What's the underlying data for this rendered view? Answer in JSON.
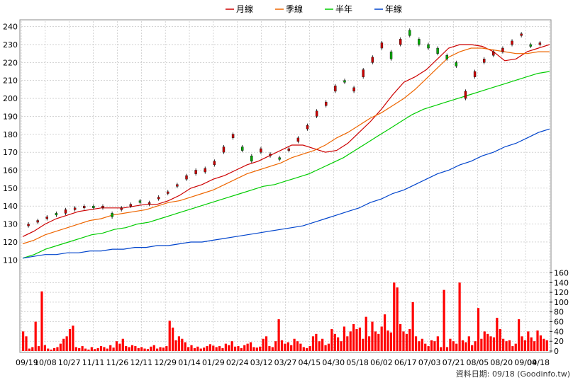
{
  "legend": [
    {
      "label": "月線",
      "color": "#cc0000"
    },
    {
      "label": "季線",
      "color": "#ee6600"
    },
    {
      "label": "半年",
      "color": "#00cc00"
    },
    {
      "label": "年線",
      "color": "#0044cc"
    }
  ],
  "footer": {
    "text": "資料日期: 09/18 (Goodinfo.tw)"
  },
  "colors": {
    "up_candle": "#cc0000",
    "down_candle": "#00aa00",
    "volume_bar": "#ff0000",
    "grid": "#bbbbbb"
  },
  "chart_data": [
    {
      "type": "line",
      "title": "",
      "x_tick_labels": [
        "09/19",
        "10/08",
        "10/27",
        "11/11",
        "11/26",
        "12/11",
        "12/29",
        "01/14",
        "01/29",
        "02/24",
        "03/12",
        "03/27",
        "04/15",
        "04/30",
        "05/18",
        "06/02",
        "06/17",
        "07/03",
        "07/21",
        "08/05",
        "08/20",
        "09/04",
        "09/18"
      ],
      "ylim": [
        105,
        243
      ],
      "y_ticks": [
        110,
        120,
        130,
        140,
        150,
        160,
        170,
        180,
        190,
        200,
        210,
        220,
        230,
        240
      ],
      "grid": true,
      "legend_placement": "top",
      "series": [
        {
          "name": "月線",
          "color": "#cc0000",
          "values": [
            123,
            126,
            130,
            133,
            135,
            137,
            138,
            139,
            139,
            139,
            140,
            141,
            141,
            143,
            146,
            150,
            152,
            155,
            157,
            160,
            163,
            165,
            168,
            171,
            174,
            174,
            172,
            170,
            171,
            175,
            181,
            187,
            194,
            202,
            209,
            212,
            216,
            222,
            228,
            230,
            230,
            229,
            226,
            221,
            222,
            226,
            228,
            230
          ]
        },
        {
          "name": "季線",
          "color": "#ee6600",
          "values": [
            119,
            121,
            124,
            126,
            128,
            130,
            132,
            133,
            135,
            136,
            137,
            138,
            140,
            142,
            143,
            145,
            147,
            149,
            152,
            155,
            158,
            160,
            162,
            164,
            167,
            169,
            171,
            174,
            178,
            181,
            185,
            189,
            192,
            196,
            200,
            205,
            211,
            217,
            223,
            226,
            228,
            228,
            227,
            226,
            225,
            225,
            226,
            226
          ]
        },
        {
          "name": "半年",
          "color": "#00cc00",
          "values": [
            111,
            113,
            116,
            118,
            120,
            122,
            124,
            125,
            127,
            128,
            130,
            131,
            133,
            135,
            137,
            139,
            141,
            143,
            145,
            147,
            149,
            151,
            152,
            154,
            156,
            158,
            161,
            164,
            167,
            171,
            175,
            179,
            183,
            187,
            191,
            194,
            196,
            198,
            200,
            202,
            204,
            206,
            208,
            210,
            212,
            214,
            215
          ]
        },
        {
          "name": "年線",
          "color": "#0044cc",
          "values": [
            111,
            112,
            113,
            113,
            114,
            114,
            115,
            115,
            116,
            116,
            117,
            117,
            118,
            118,
            119,
            120,
            120,
            121,
            122,
            123,
            124,
            125,
            126,
            127,
            128,
            129,
            131,
            133,
            135,
            137,
            139,
            142,
            144,
            147,
            149,
            152,
            155,
            158,
            160,
            163,
            165,
            168,
            170,
            173,
            175,
            178,
            181,
            183
          ]
        }
      ]
    },
    {
      "type": "candlestick",
      "description_note": "",
      "candles": [
        {
          "i": 1,
          "o": 129,
          "c": 130
        },
        {
          "i": 3,
          "o": 131,
          "c": 132
        },
        {
          "i": 5,
          "o": 133,
          "c": 134
        },
        {
          "i": 7,
          "o": 136,
          "c": 135
        },
        {
          "i": 9,
          "o": 136,
          "c": 138
        },
        {
          "i": 11,
          "o": 138,
          "c": 139
        },
        {
          "i": 13,
          "o": 139,
          "c": 140
        },
        {
          "i": 15,
          "o": 140,
          "c": 139
        },
        {
          "i": 17,
          "o": 139,
          "c": 140
        },
        {
          "i": 19,
          "o": 136,
          "c": 134
        },
        {
          "i": 21,
          "o": 138,
          "c": 139
        },
        {
          "i": 23,
          "o": 140,
          "c": 141
        },
        {
          "i": 25,
          "o": 143,
          "c": 142
        },
        {
          "i": 27,
          "o": 141,
          "c": 142
        },
        {
          "i": 29,
          "o": 144,
          "c": 145
        },
        {
          "i": 31,
          "o": 147,
          "c": 148
        },
        {
          "i": 33,
          "o": 151,
          "c": 152
        },
        {
          "i": 35,
          "o": 155,
          "c": 157
        },
        {
          "i": 37,
          "o": 158,
          "c": 160
        },
        {
          "i": 39,
          "o": 159,
          "c": 161
        },
        {
          "i": 41,
          "o": 163,
          "c": 165
        },
        {
          "i": 43,
          "o": 170,
          "c": 173
        },
        {
          "i": 45,
          "o": 178,
          "c": 180
        },
        {
          "i": 47,
          "o": 173,
          "c": 171
        },
        {
          "i": 49,
          "o": 168,
          "c": 165
        },
        {
          "i": 51,
          "o": 170,
          "c": 172
        },
        {
          "i": 53,
          "o": 168,
          "c": 169
        },
        {
          "i": 55,
          "o": 167,
          "c": 166
        },
        {
          "i": 57,
          "o": 171,
          "c": 172
        },
        {
          "i": 59,
          "o": 176,
          "c": 178
        },
        {
          "i": 61,
          "o": 183,
          "c": 185
        },
        {
          "i": 63,
          "o": 190,
          "c": 193
        },
        {
          "i": 65,
          "o": 196,
          "c": 198
        },
        {
          "i": 67,
          "o": 204,
          "c": 207
        },
        {
          "i": 69,
          "o": 210,
          "c": 209
        },
        {
          "i": 71,
          "o": 204,
          "c": 206
        },
        {
          "i": 73,
          "o": 212,
          "c": 216
        },
        {
          "i": 75,
          "o": 220,
          "c": 223
        },
        {
          "i": 77,
          "o": 228,
          "c": 231
        },
        {
          "i": 79,
          "o": 226,
          "c": 222
        },
        {
          "i": 81,
          "o": 230,
          "c": 233
        },
        {
          "i": 83,
          "o": 238,
          "c": 235
        },
        {
          "i": 85,
          "o": 233,
          "c": 230
        },
        {
          "i": 87,
          "o": 230,
          "c": 228
        },
        {
          "i": 89,
          "o": 228,
          "c": 225
        },
        {
          "i": 91,
          "o": 224,
          "c": 222
        },
        {
          "i": 93,
          "o": 220,
          "c": 218
        },
        {
          "i": 95,
          "o": 200,
          "c": 204
        },
        {
          "i": 97,
          "o": 212,
          "c": 215
        },
        {
          "i": 99,
          "o": 220,
          "c": 222
        },
        {
          "i": 101,
          "o": 224,
          "c": 226
        },
        {
          "i": 103,
          "o": 226,
          "c": 228
        },
        {
          "i": 105,
          "o": 230,
          "c": 232
        },
        {
          "i": 107,
          "o": 235,
          "c": 236
        },
        {
          "i": 109,
          "o": 230,
          "c": 229
        },
        {
          "i": 111,
          "o": 230,
          "c": 231
        }
      ]
    },
    {
      "type": "bar",
      "ylim": [
        0,
        165
      ],
      "y_ticks": [
        0,
        20,
        40,
        60,
        80,
        100,
        120,
        140,
        160
      ],
      "values": [
        40,
        30,
        5,
        8,
        60,
        10,
        122,
        12,
        5,
        3,
        6,
        8,
        15,
        25,
        30,
        45,
        52,
        8,
        6,
        10,
        5,
        3,
        8,
        4,
        6,
        10,
        8,
        5,
        12,
        7,
        20,
        15,
        25,
        10,
        8,
        12,
        10,
        6,
        8,
        5,
        4,
        9,
        12,
        5,
        8,
        7,
        10,
        62,
        48,
        22,
        30,
        25,
        18,
        8,
        12,
        6,
        9,
        5,
        7,
        10,
        14,
        11,
        8,
        10,
        6,
        15,
        12,
        20,
        9,
        10,
        6,
        12,
        15,
        18,
        8,
        7,
        9,
        25,
        30,
        10,
        8,
        20,
        65,
        22,
        15,
        18,
        12,
        25,
        20,
        15,
        8,
        6,
        10,
        30,
        35,
        20,
        25,
        12,
        15,
        45,
        35,
        28,
        20,
        50,
        30,
        40,
        55,
        45,
        48,
        25,
        70,
        30,
        60,
        40,
        35,
        50,
        75,
        42,
        38,
        140,
        130,
        55,
        40,
        35,
        45,
        100,
        30,
        20,
        25,
        15,
        10,
        22,
        20,
        30,
        8,
        125,
        8,
        25,
        20,
        15,
        140,
        22,
        18,
        30,
        12,
        20,
        88,
        25,
        40,
        35,
        30,
        28,
        68,
        45,
        25,
        20,
        22,
        10,
        15,
        65,
        30,
        22,
        40,
        28,
        20,
        42,
        32,
        25,
        22
      ]
    }
  ]
}
